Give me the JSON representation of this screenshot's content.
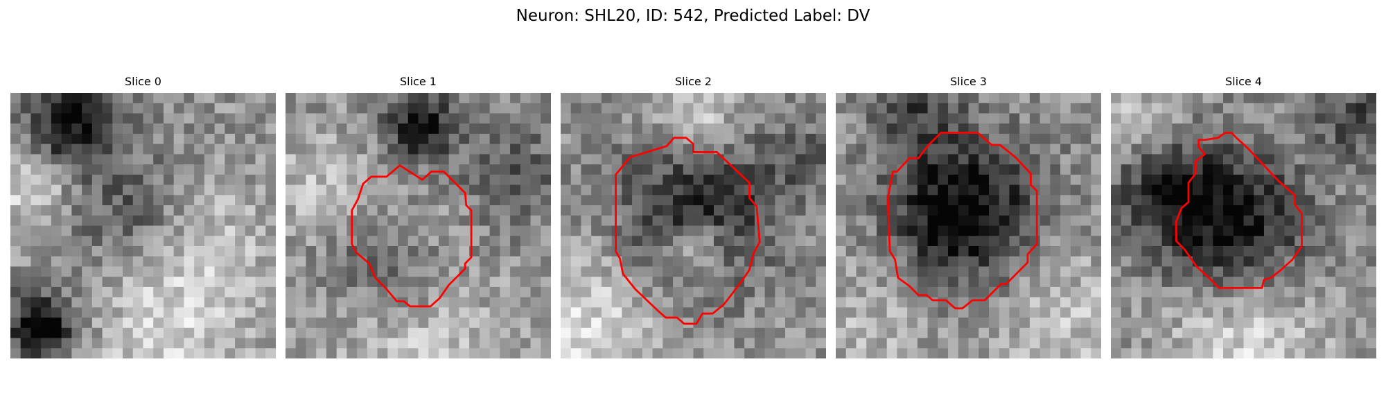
{
  "figure": {
    "title": "Neuron: SHL20, ID: 542, Predicted Label: DV",
    "contour_color": "#ff0000"
  },
  "panels": [
    {
      "title": "Slice 0",
      "has_contour": false,
      "blobs": [
        [
          0.22,
          0.12,
          0.12,
          -0.55
        ],
        [
          0.12,
          0.88,
          0.09,
          -0.6
        ],
        [
          0.45,
          0.45,
          0.16,
          -0.25
        ],
        [
          0.75,
          0.55,
          0.2,
          0.15
        ],
        [
          0.6,
          0.88,
          0.22,
          0.25
        ],
        [
          0.08,
          0.35,
          0.12,
          0.3
        ]
      ]
    },
    {
      "title": "Slice 1",
      "has_contour": true,
      "contour": [
        [
          13.4,
          8.5
        ],
        [
          14.3,
          7.7
        ],
        [
          15.5,
          7.7
        ],
        [
          16.5,
          8.7
        ],
        [
          17.6,
          9.8
        ],
        [
          17.7,
          11.0
        ],
        [
          18.2,
          11.5
        ],
        [
          18.2,
          16.1
        ],
        [
          17.6,
          16.7
        ],
        [
          17.6,
          17.2
        ],
        [
          16.0,
          18.8
        ],
        [
          15.1,
          20.1
        ],
        [
          14.2,
          20.9
        ],
        [
          12.2,
          20.9
        ],
        [
          11.6,
          20.4
        ],
        [
          10.9,
          20.4
        ],
        [
          9.8,
          19.1
        ],
        [
          8.8,
          18.1
        ],
        [
          8.2,
          16.7
        ],
        [
          6.9,
          15.6
        ],
        [
          6.5,
          14.8
        ],
        [
          6.5,
          11.5
        ],
        [
          7.1,
          10.4
        ],
        [
          7.6,
          8.9
        ],
        [
          8.4,
          8.2
        ],
        [
          9.9,
          8.2
        ],
        [
          11.2,
          7.1
        ]
      ],
      "blobs": [
        [
          0.5,
          0.12,
          0.1,
          -0.45
        ],
        [
          0.5,
          0.5,
          0.14,
          0.2
        ],
        [
          0.42,
          0.62,
          0.18,
          -0.35
        ],
        [
          0.15,
          0.35,
          0.15,
          0.2
        ],
        [
          0.85,
          0.3,
          0.15,
          -0.2
        ],
        [
          0.5,
          0.92,
          0.25,
          0.25
        ]
      ]
    },
    {
      "title": "Slice 2",
      "has_contour": true,
      "contour": [
        [
          6.8,
          6.3
        ],
        [
          10.4,
          5.2
        ],
        [
          11.1,
          4.4
        ],
        [
          12.3,
          4.4
        ],
        [
          13.0,
          5.0
        ],
        [
          13.0,
          5.8
        ],
        [
          15.3,
          5.8
        ],
        [
          18.5,
          8.8
        ],
        [
          18.5,
          10.3
        ],
        [
          19.2,
          11.1
        ],
        [
          19.5,
          14.6
        ],
        [
          18.9,
          15.7
        ],
        [
          18.5,
          17.3
        ],
        [
          17.7,
          18.5
        ],
        [
          16.0,
          20.7
        ],
        [
          14.9,
          21.6
        ],
        [
          13.9,
          21.6
        ],
        [
          13.3,
          22.6
        ],
        [
          12.1,
          22.6
        ],
        [
          11.4,
          22.0
        ],
        [
          10.3,
          22.0
        ],
        [
          9.5,
          21.3
        ],
        [
          7.3,
          19.2
        ],
        [
          6.1,
          17.7
        ],
        [
          5.8,
          16.2
        ],
        [
          5.4,
          15.5
        ],
        [
          5.4,
          8.0
        ]
      ],
      "blobs": [
        [
          0.52,
          0.42,
          0.2,
          -0.45
        ],
        [
          0.52,
          0.58,
          0.08,
          0.35
        ],
        [
          0.52,
          0.12,
          0.12,
          0.3
        ],
        [
          0.1,
          0.9,
          0.2,
          0.3
        ],
        [
          0.9,
          0.25,
          0.12,
          -0.15
        ]
      ]
    },
    {
      "title": "Slice 3",
      "has_contour": true,
      "contour": [
        [
          9.0,
          5.2
        ],
        [
          10.3,
          3.9
        ],
        [
          13.9,
          3.9
        ],
        [
          15.3,
          5.1
        ],
        [
          16.1,
          5.1
        ],
        [
          17.6,
          6.3
        ],
        [
          19.1,
          7.9
        ],
        [
          19.1,
          9.0
        ],
        [
          19.7,
          9.6
        ],
        [
          19.7,
          14.8
        ],
        [
          18.8,
          15.8
        ],
        [
          18.8,
          16.6
        ],
        [
          16.7,
          18.7
        ],
        [
          16.2,
          18.7
        ],
        [
          14.6,
          20.3
        ],
        [
          13.4,
          20.3
        ],
        [
          12.4,
          21.1
        ],
        [
          11.7,
          21.1
        ],
        [
          10.8,
          20.3
        ],
        [
          9.5,
          20.3
        ],
        [
          8.9,
          19.8
        ],
        [
          8.1,
          19.8
        ],
        [
          7.2,
          18.9
        ],
        [
          6.1,
          18.1
        ],
        [
          5.8,
          16.3
        ],
        [
          5.3,
          15.5
        ],
        [
          5.1,
          10.3
        ],
        [
          5.6,
          7.7
        ],
        [
          6.0,
          7.7
        ],
        [
          7.2,
          6.4
        ],
        [
          8.1,
          6.4
        ]
      ],
      "blobs": [
        [
          0.48,
          0.45,
          0.19,
          -0.6
        ],
        [
          0.3,
          0.05,
          0.12,
          -0.25
        ],
        [
          0.85,
          0.85,
          0.2,
          0.2
        ],
        [
          0.12,
          0.85,
          0.18,
          0.15
        ]
      ]
    },
    {
      "title": "Slice 4",
      "has_contour": true,
      "contour": [
        [
          8.6,
          5.3
        ],
        [
          8.6,
          4.6
        ],
        [
          9.2,
          4.6
        ],
        [
          10.5,
          4.4
        ],
        [
          11.2,
          3.9
        ],
        [
          11.8,
          3.9
        ],
        [
          12.3,
          4.4
        ],
        [
          13.5,
          5.5
        ],
        [
          16.4,
          8.6
        ],
        [
          18.0,
          10.0
        ],
        [
          18.0,
          10.9
        ],
        [
          18.7,
          11.8
        ],
        [
          18.7,
          15.0
        ],
        [
          17.8,
          16.3
        ],
        [
          16.7,
          17.3
        ],
        [
          15.7,
          18.1
        ],
        [
          15.0,
          18.3
        ],
        [
          14.8,
          19.1
        ],
        [
          10.6,
          19.1
        ],
        [
          9.6,
          18.1
        ],
        [
          8.4,
          17.0
        ],
        [
          7.2,
          15.3
        ],
        [
          6.4,
          14.5
        ],
        [
          6.4,
          12.6
        ],
        [
          6.9,
          11.3
        ],
        [
          7.6,
          10.7
        ],
        [
          7.6,
          8.8
        ],
        [
          8.3,
          7.9
        ],
        [
          8.3,
          6.7
        ],
        [
          9.2,
          6.0
        ]
      ],
      "blobs": [
        [
          0.45,
          0.5,
          0.2,
          -0.55
        ],
        [
          0.2,
          0.35,
          0.12,
          -0.35
        ],
        [
          0.92,
          0.1,
          0.1,
          -0.3
        ],
        [
          0.5,
          0.92,
          0.22,
          0.3
        ],
        [
          0.1,
          0.1,
          0.12,
          0.2
        ]
      ]
    }
  ]
}
